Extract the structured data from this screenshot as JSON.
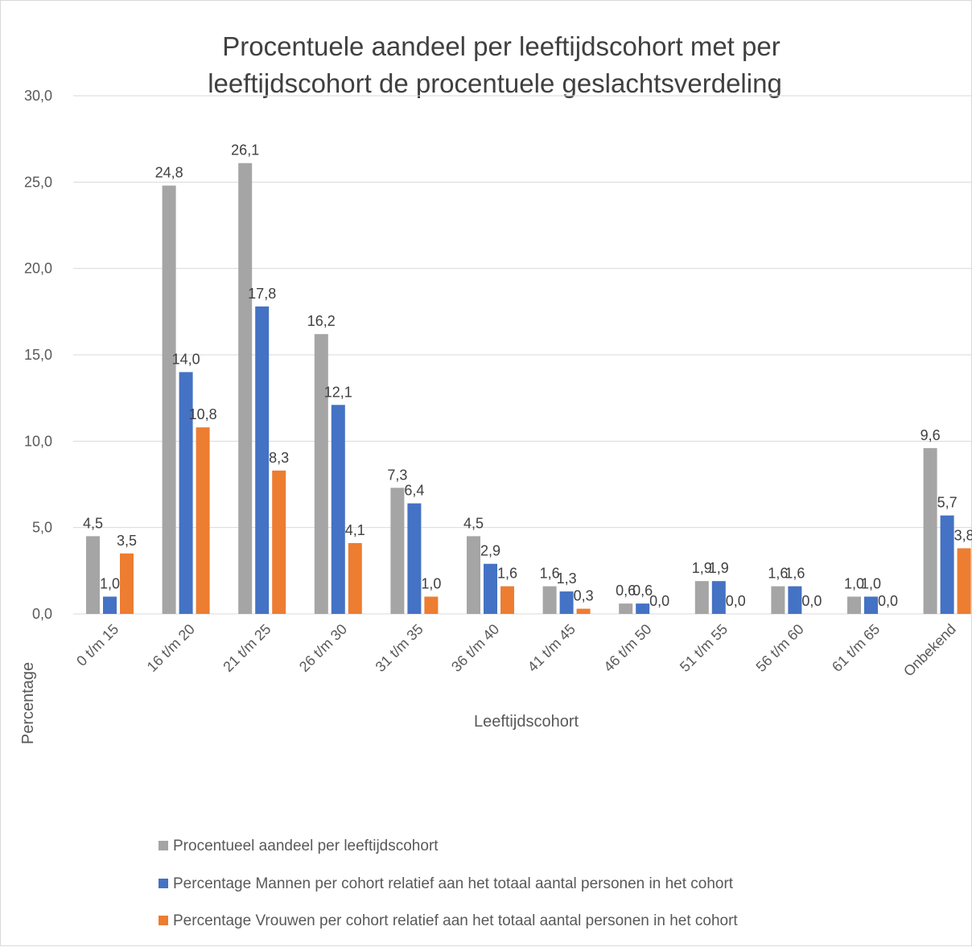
{
  "chart_data": {
    "type": "bar",
    "title_lines": [
      "Procentuele aandeel per leeftijdscohort met per",
      "leeftijdscohort de procentuele geslachtsverdeling"
    ],
    "xlabel": "Leeftijdscohort",
    "ylabel": "Percentage",
    "ylim": [
      0,
      30
    ],
    "ytick_labels": [
      "0,0",
      "5,0",
      "10,0",
      "15,0",
      "20,0",
      "25,0",
      "30,0"
    ],
    "grid": true,
    "legend_position": "bottom",
    "categories": [
      "0 t/m 15",
      "16 t/m 20",
      "21 t/m 25",
      "26 t/m 30",
      "31 t/m 35",
      "36 t/m 40",
      "41 t/m 45",
      "46 t/m 50",
      "51 t/m 55",
      "56 t/m 60",
      "61 t/m 65",
      "Onbekend"
    ],
    "series": [
      {
        "name": "Procentueel aandeel per leeftijdscohort",
        "color": "#a5a5a5",
        "values": [
          4.5,
          24.8,
          26.1,
          16.2,
          7.3,
          4.5,
          1.6,
          0.6,
          1.9,
          1.6,
          1.0,
          9.6
        ],
        "labels": [
          "4,5",
          "24,8",
          "26,1",
          "16,2",
          "7,3",
          "4,5",
          "1,6",
          "0,6",
          "1,9",
          "1,6",
          "1,0",
          "9,6"
        ]
      },
      {
        "name": " Percentage Mannen per cohort relatief aan het totaal aantal personen in het cohort",
        "color": "#4472c4",
        "values": [
          1.0,
          14.0,
          17.8,
          12.1,
          6.4,
          2.9,
          1.3,
          0.6,
          1.9,
          1.6,
          1.0,
          5.7
        ],
        "labels": [
          "1,0",
          "14,0",
          "17,8",
          "12,1",
          "6,4",
          "2,9",
          "1,3",
          "0,6",
          "1,9",
          "1,6",
          "1,0",
          "5,7"
        ]
      },
      {
        "name": "Percentage Vrouwen per cohort relatief aan het totaal aantal personen in het cohort",
        "color": "#ed7d31",
        "values": [
          3.5,
          10.8,
          8.3,
          4.1,
          1.0,
          1.6,
          0.3,
          0.0,
          0.0,
          0.0,
          0.0,
          3.8
        ],
        "labels": [
          "3,5",
          "10,8",
          "8,3",
          "4,1",
          "1,0",
          "1,6",
          "0,3",
          "0,0",
          "0,0",
          "0,0",
          "0,0",
          "3,8"
        ]
      }
    ]
  },
  "colors": {
    "gridline": "#d9d9d9",
    "text": "#595959"
  }
}
